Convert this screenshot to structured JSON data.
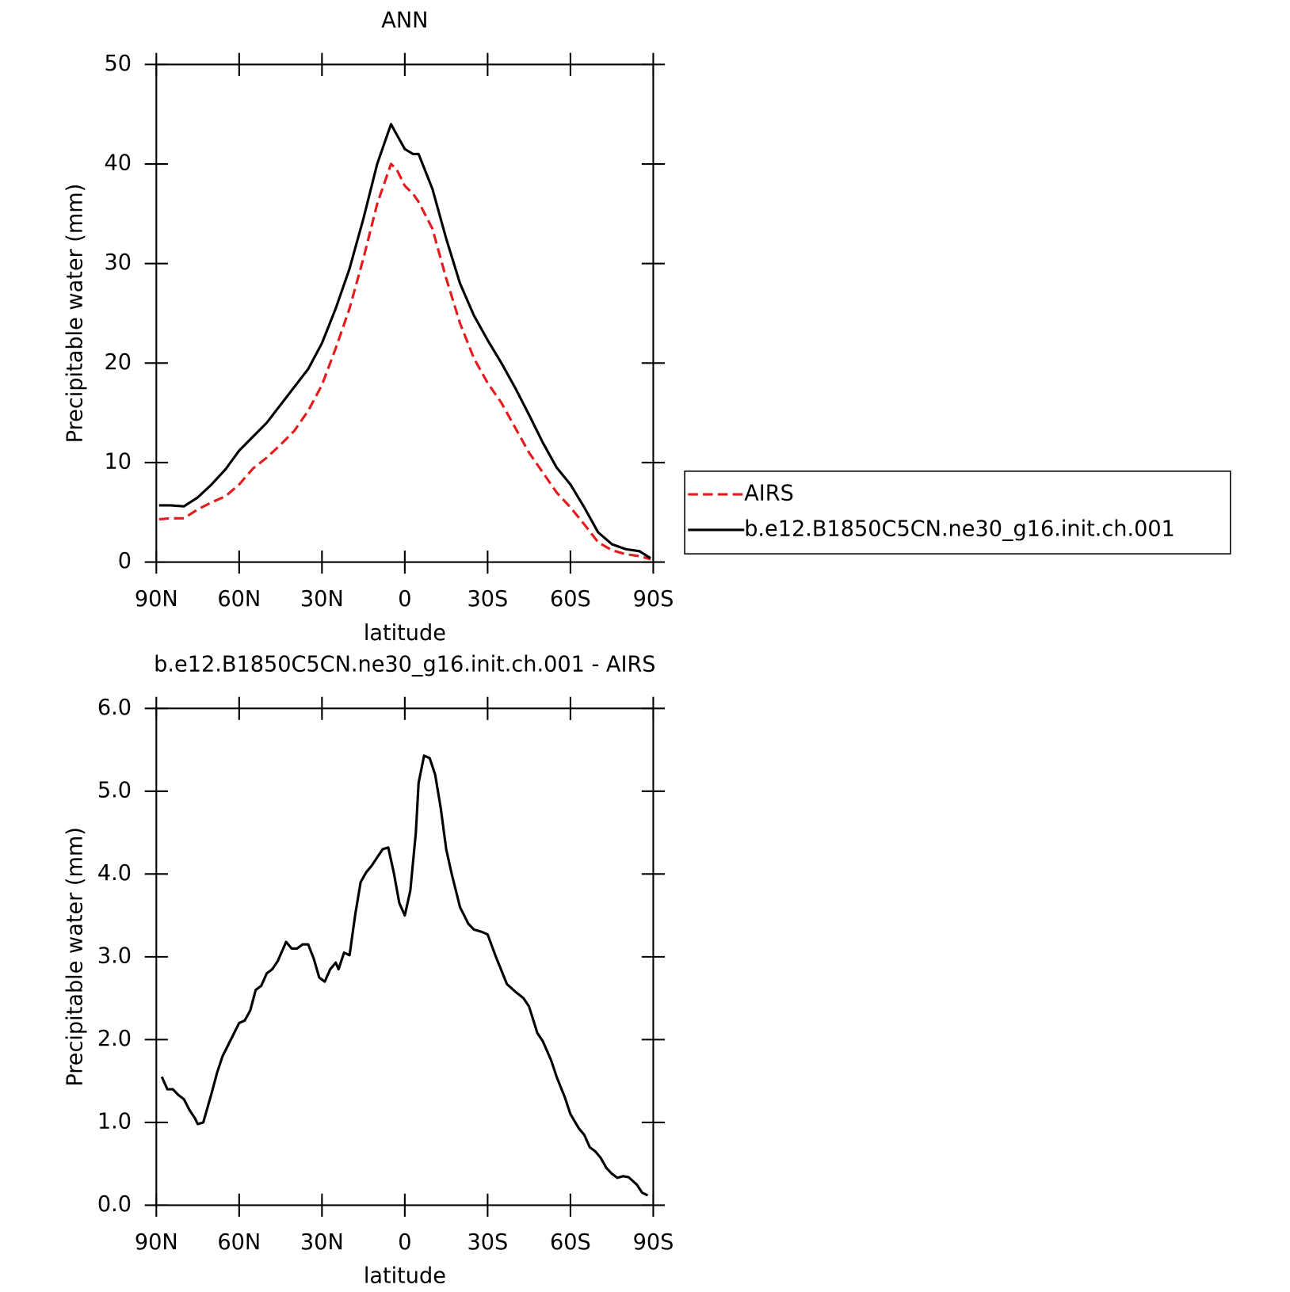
{
  "chart_data": [
    {
      "type": "line",
      "title": "ANN",
      "xlabel": "latitude",
      "ylabel": "Precipitable water (mm)",
      "x": [
        89,
        85,
        80,
        75,
        70,
        65,
        60,
        55,
        50,
        45,
        40,
        35,
        30,
        25,
        20,
        15,
        10,
        5,
        3,
        0,
        -3,
        -5,
        -10,
        -15,
        -20,
        -25,
        -30,
        -35,
        -40,
        -45,
        -50,
        -55,
        -60,
        -65,
        -70,
        -75,
        -80,
        -85,
        -89
      ],
      "series": [
        {
          "name": "AIRS",
          "color": "#e41a1c",
          "style": "dashed",
          "values": [
            4.3,
            4.4,
            4.4,
            5.3,
            6.0,
            6.6,
            7.8,
            9.4,
            10.5,
            11.8,
            13.2,
            15.2,
            17.8,
            21.5,
            25.5,
            30.5,
            36.0,
            40.0,
            39.5,
            37.8,
            37.0,
            36.2,
            33.5,
            28.5,
            24.0,
            20.5,
            18.0,
            16.0,
            13.5,
            11.0,
            9.0,
            7.0,
            5.5,
            3.8,
            2.0,
            1.2,
            0.8,
            0.6,
            0.3
          ]
        },
        {
          "name": "b.e12.B1850C5CN.ne30_g16.init.ch.001",
          "color": "#000000",
          "style": "solid",
          "values": [
            5.7,
            5.7,
            5.6,
            6.5,
            7.8,
            9.3,
            11.2,
            12.6,
            14.0,
            15.8,
            17.6,
            19.4,
            22.0,
            25.5,
            29.5,
            34.5,
            40.0,
            44.0,
            43.0,
            41.5,
            41.0,
            41.0,
            37.5,
            32.5,
            28.0,
            24.8,
            22.3,
            20.0,
            17.5,
            14.8,
            12.0,
            9.5,
            7.8,
            5.5,
            3.0,
            1.8,
            1.3,
            1.1,
            0.4
          ]
        }
      ],
      "xlim": [
        90,
        -90
      ],
      "xticks": [
        {
          "value": 90,
          "label": "90N"
        },
        {
          "value": 60,
          "label": "60N"
        },
        {
          "value": 30,
          "label": "30N"
        },
        0,
        {
          "value": -30,
          "label": "30S"
        },
        {
          "value": -60,
          "label": "60S"
        },
        {
          "value": -90,
          "label": "90S"
        }
      ],
      "ylim": [
        0,
        50
      ],
      "yticks": [
        0,
        10,
        20,
        30,
        40,
        50
      ],
      "legend": "right"
    },
    {
      "type": "line",
      "title": "b.e12.B1850C5CN.ne30_g16.init.ch.001 - AIRS",
      "xlabel": "latitude",
      "ylabel": "Precipitable water (mm)",
      "x": [
        88,
        86,
        84,
        82,
        80,
        78,
        76,
        75,
        73,
        70,
        68,
        66,
        63,
        60,
        58,
        56,
        54,
        52,
        50,
        48,
        46,
        43,
        41,
        39,
        37,
        35,
        33,
        31,
        29,
        27,
        25,
        24,
        22,
        20,
        18,
        16,
        14,
        12,
        10,
        8,
        6,
        4,
        2,
        0,
        -2,
        -4,
        -5,
        -7,
        -9,
        -11,
        -13,
        -15,
        -17,
        -20,
        -23,
        -25,
        -28,
        -30,
        -33,
        -37,
        -40,
        -43,
        -45,
        -48,
        -50,
        -53,
        -55,
        -58,
        -60,
        -63,
        -65,
        -67,
        -69,
        -71,
        -73,
        -75,
        -77,
        -79,
        -81,
        -84,
        -86,
        -88
      ],
      "color": "#000000",
      "values": [
        1.55,
        1.4,
        1.4,
        1.33,
        1.28,
        1.15,
        1.05,
        0.98,
        1.0,
        1.35,
        1.6,
        1.8,
        2.0,
        2.2,
        2.23,
        2.35,
        2.6,
        2.65,
        2.8,
        2.85,
        2.95,
        3.18,
        3.1,
        3.1,
        3.15,
        3.15,
        2.98,
        2.75,
        2.7,
        2.85,
        2.93,
        2.85,
        3.05,
        3.02,
        3.5,
        3.9,
        4.02,
        4.1,
        4.2,
        4.3,
        4.32,
        4.02,
        3.65,
        3.5,
        3.8,
        4.5,
        5.1,
        5.43,
        5.4,
        5.2,
        4.8,
        4.3,
        4.0,
        3.6,
        3.4,
        3.33,
        3.3,
        3.27,
        3.0,
        2.67,
        2.58,
        2.5,
        2.4,
        2.08,
        1.98,
        1.75,
        1.55,
        1.3,
        1.1,
        0.93,
        0.85,
        0.7,
        0.65,
        0.57,
        0.45,
        0.38,
        0.33,
        0.35,
        0.34,
        0.25,
        0.15,
        0.12
      ],
      "xlim": [
        90,
        -90
      ],
      "xticks": [
        {
          "value": 90,
          "label": "90N"
        },
        {
          "value": 60,
          "label": "60N"
        },
        {
          "value": 30,
          "label": "30N"
        },
        0,
        {
          "value": -30,
          "label": "30S"
        },
        {
          "value": -60,
          "label": "60S"
        },
        {
          "value": -90,
          "label": "90S"
        }
      ],
      "ylim": [
        0,
        6
      ],
      "yticks": [
        {
          "value": 0,
          "label": "0.0"
        },
        {
          "value": 1,
          "label": "1.0"
        },
        {
          "value": 2,
          "label": "2.0"
        },
        {
          "value": 3,
          "label": "3.0"
        },
        {
          "value": 4,
          "label": "4.0"
        },
        {
          "value": 5,
          "label": "5.0"
        },
        {
          "value": 6,
          "label": "6.0"
        }
      ]
    }
  ]
}
